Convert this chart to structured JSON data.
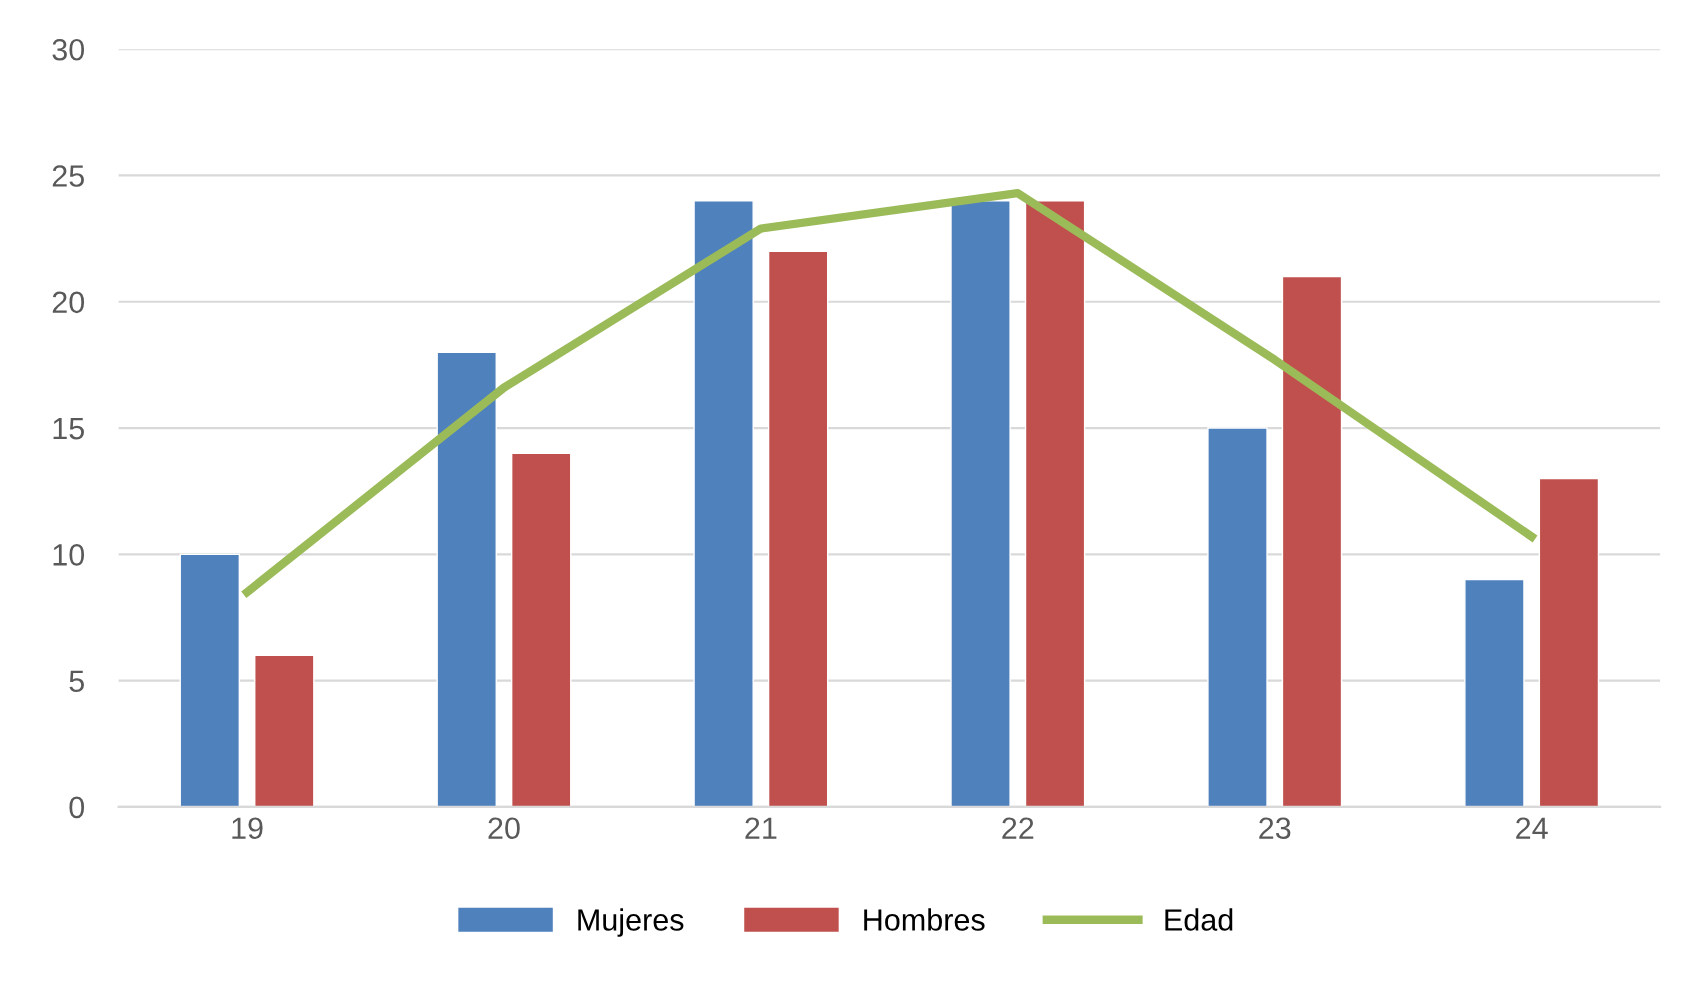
{
  "chart_data": {
    "type": "bar",
    "categories": [
      "19",
      "20",
      "21",
      "22",
      "23",
      "24"
    ],
    "series": [
      {
        "name": "Mujeres",
        "color": "#4f81bd",
        "values": [
          10,
          18,
          24,
          24,
          15,
          9
        ]
      },
      {
        "name": "Hombres",
        "color": "#c0504d",
        "values": [
          6,
          14,
          22,
          24,
          21,
          13
        ]
      },
      {
        "name": "Edad",
        "type": "line",
        "color": "#9bbb59",
        "values": [
          8.5,
          16.6,
          22.9,
          24.3,
          17.7,
          10.7
        ]
      }
    ],
    "ylim": [
      0,
      30
    ],
    "yticks": [
      0,
      5,
      10,
      15,
      20,
      25,
      30
    ],
    "grid": "y",
    "legend": "bottom",
    "marker": "none",
    "line_style": "solid"
  }
}
